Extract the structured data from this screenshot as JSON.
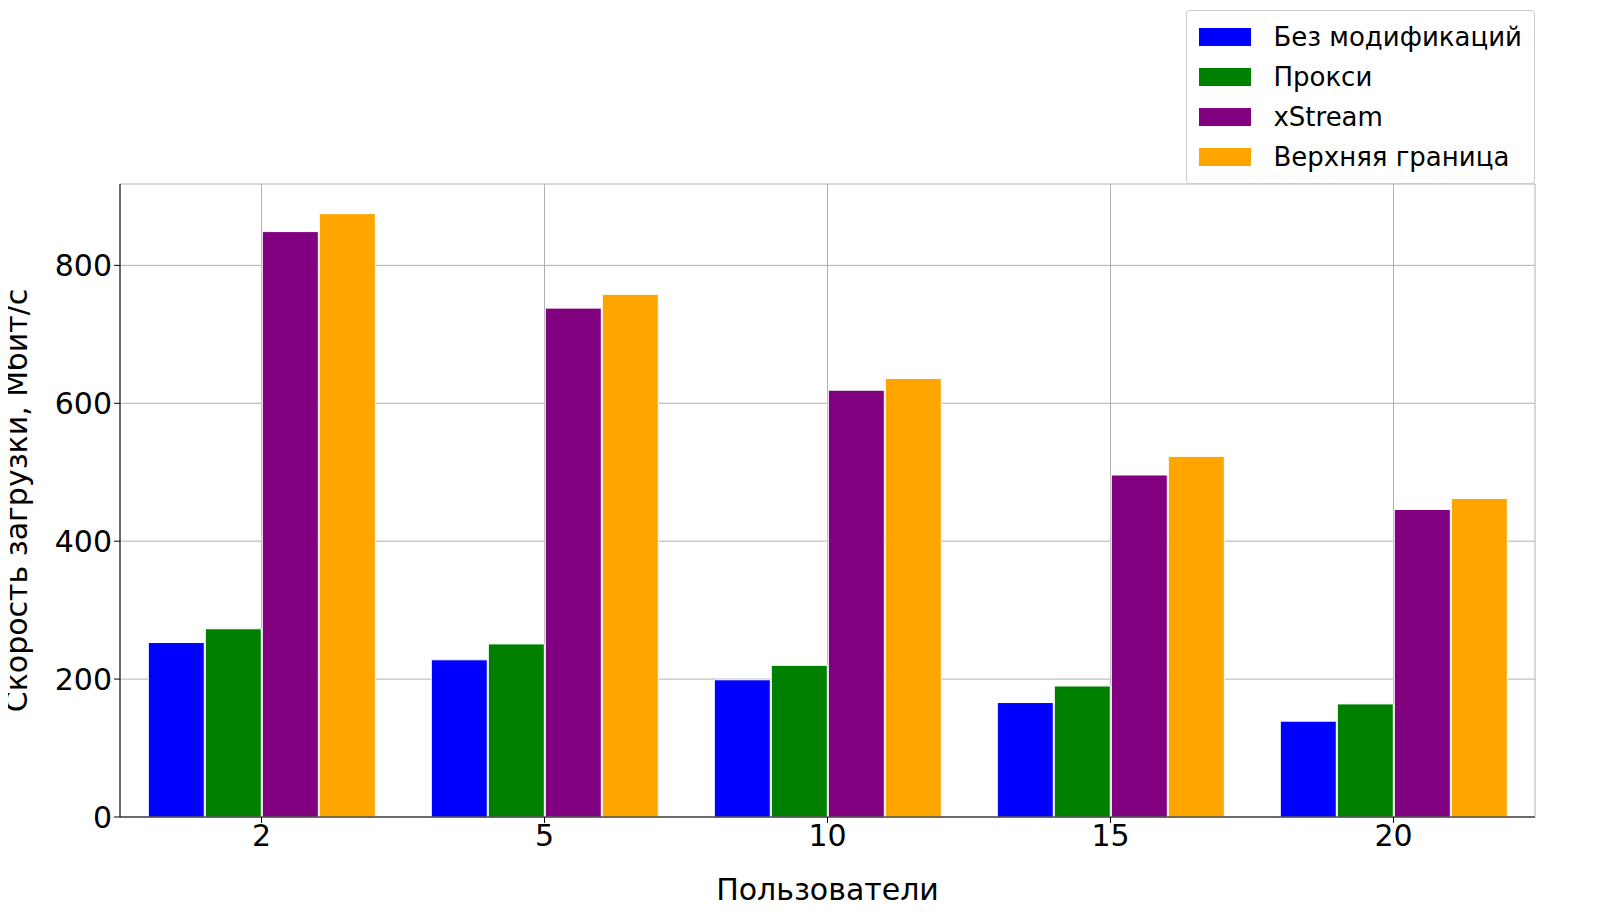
{
  "chart_data": {
    "type": "bar",
    "x_label": "Пользователи",
    "y_label": "Скорость загрузки, Мбит/с",
    "categories": [
      "2",
      "5",
      "10",
      "15",
      "20"
    ],
    "series": [
      {
        "name": "Без модификаций",
        "color": "#0000ff",
        "values": [
          253,
          228,
          199,
          166,
          139
        ]
      },
      {
        "name": "Прокси",
        "color": "#008000",
        "values": [
          273,
          251,
          220,
          190,
          164
        ]
      },
      {
        "name": "xStream",
        "color": "#800080",
        "values": [
          849,
          738,
          619,
          496,
          446
        ]
      },
      {
        "name": "Верхняя граница",
        "color": "#ffa500",
        "values": [
          875,
          758,
          636,
          523,
          462
        ]
      }
    ],
    "ylim": [
      0,
      918
    ],
    "yticks": [
      0,
      200,
      400,
      600,
      800
    ],
    "grid": true,
    "legend": "upper right"
  }
}
